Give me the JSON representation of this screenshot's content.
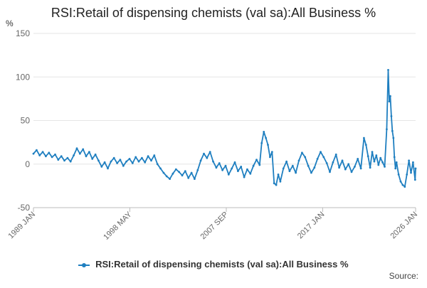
{
  "chart_data": {
    "type": "line",
    "title": "RSI:Retail of dispensing chemists (val sa):All Business %",
    "ylabel": "%",
    "xlabel": "",
    "ylim": [
      -50,
      150
    ],
    "yticks": [
      -50,
      0,
      50,
      100,
      150
    ],
    "x_ticks": [
      {
        "label": "1989 JAN",
        "t": 1989.0
      },
      {
        "label": "1998 MAY",
        "t": 1998.33
      },
      {
        "label": "2007 SEP",
        "t": 2007.67
      },
      {
        "label": "2017 JAN",
        "t": 2017.0
      },
      {
        "label": "2026 JAN",
        "t": 2026.0
      }
    ],
    "x_range": [
      1989.0,
      2026.0
    ],
    "grid": true,
    "legend_position": "bottom",
    "series": [
      {
        "name": "RSI:Retail of dispensing chemists (val sa):All Business %",
        "points": [
          [
            1989.0,
            12
          ],
          [
            1989.3,
            16
          ],
          [
            1989.6,
            10
          ],
          [
            1989.9,
            14
          ],
          [
            1990.2,
            9
          ],
          [
            1990.5,
            13
          ],
          [
            1990.8,
            8
          ],
          [
            1991.1,
            11
          ],
          [
            1991.4,
            5
          ],
          [
            1991.7,
            9
          ],
          [
            1992.0,
            4
          ],
          [
            1992.3,
            7
          ],
          [
            1992.6,
            3
          ],
          [
            1992.9,
            10
          ],
          [
            1993.2,
            18
          ],
          [
            1993.5,
            12
          ],
          [
            1993.8,
            17
          ],
          [
            1994.1,
            9
          ],
          [
            1994.4,
            14
          ],
          [
            1994.7,
            6
          ],
          [
            1995.0,
            11
          ],
          [
            1995.3,
            4
          ],
          [
            1995.6,
            -3
          ],
          [
            1995.9,
            2
          ],
          [
            1996.2,
            -5
          ],
          [
            1996.5,
            3
          ],
          [
            1996.8,
            7
          ],
          [
            1997.1,
            1
          ],
          [
            1997.4,
            5
          ],
          [
            1997.7,
            -2
          ],
          [
            1998.0,
            3
          ],
          [
            1998.3,
            6
          ],
          [
            1998.6,
            1
          ],
          [
            1998.9,
            8
          ],
          [
            1999.2,
            3
          ],
          [
            1999.5,
            7
          ],
          [
            1999.8,
            2
          ],
          [
            2000.1,
            9
          ],
          [
            2000.4,
            4
          ],
          [
            2000.7,
            10
          ],
          [
            2001.0,
            0
          ],
          [
            2001.3,
            -5
          ],
          [
            2001.6,
            -10
          ],
          [
            2001.9,
            -14
          ],
          [
            2002.2,
            -17
          ],
          [
            2002.5,
            -11
          ],
          [
            2002.8,
            -6
          ],
          [
            2003.1,
            -9
          ],
          [
            2003.4,
            -13
          ],
          [
            2003.7,
            -8
          ],
          [
            2004.0,
            -16
          ],
          [
            2004.3,
            -10
          ],
          [
            2004.6,
            -17
          ],
          [
            2004.9,
            -7
          ],
          [
            2005.2,
            4
          ],
          [
            2005.5,
            12
          ],
          [
            2005.8,
            7
          ],
          [
            2006.1,
            14
          ],
          [
            2006.4,
            3
          ],
          [
            2006.7,
            -4
          ],
          [
            2007.0,
            1
          ],
          [
            2007.3,
            -7
          ],
          [
            2007.6,
            -2
          ],
          [
            2007.9,
            -12
          ],
          [
            2008.2,
            -5
          ],
          [
            2008.5,
            2
          ],
          [
            2008.8,
            -8
          ],
          [
            2009.1,
            -3
          ],
          [
            2009.4,
            -15
          ],
          [
            2009.7,
            -6
          ],
          [
            2010.0,
            -11
          ],
          [
            2010.3,
            -2
          ],
          [
            2010.6,
            5
          ],
          [
            2010.9,
            -1
          ],
          [
            2011.1,
            24
          ],
          [
            2011.3,
            37
          ],
          [
            2011.5,
            30
          ],
          [
            2011.7,
            22
          ],
          [
            2011.9,
            8
          ],
          [
            2012.1,
            14
          ],
          [
            2012.3,
            -22
          ],
          [
            2012.5,
            -24
          ],
          [
            2012.7,
            -12
          ],
          [
            2012.9,
            -20
          ],
          [
            2013.2,
            -5
          ],
          [
            2013.5,
            3
          ],
          [
            2013.8,
            -8
          ],
          [
            2014.1,
            -2
          ],
          [
            2014.4,
            -10
          ],
          [
            2014.7,
            4
          ],
          [
            2015.0,
            13
          ],
          [
            2015.3,
            8
          ],
          [
            2015.6,
            -2
          ],
          [
            2015.9,
            -10
          ],
          [
            2016.2,
            -4
          ],
          [
            2016.5,
            6
          ],
          [
            2016.8,
            14
          ],
          [
            2017.1,
            8
          ],
          [
            2017.4,
            1
          ],
          [
            2017.7,
            -9
          ],
          [
            2018.0,
            2
          ],
          [
            2018.3,
            11
          ],
          [
            2018.6,
            -4
          ],
          [
            2018.9,
            4
          ],
          [
            2019.2,
            -6
          ],
          [
            2019.5,
            0
          ],
          [
            2019.8,
            -9
          ],
          [
            2020.1,
            -3
          ],
          [
            2020.4,
            6
          ],
          [
            2020.7,
            -5
          ],
          [
            2021.0,
            30
          ],
          [
            2021.2,
            22
          ],
          [
            2021.4,
            9
          ],
          [
            2021.6,
            -4
          ],
          [
            2021.8,
            14
          ],
          [
            2022.0,
            3
          ],
          [
            2022.2,
            10
          ],
          [
            2022.4,
            -1
          ],
          [
            2022.6,
            7
          ],
          [
            2022.8,
            2
          ],
          [
            2023.0,
            -3
          ],
          [
            2023.2,
            40
          ],
          [
            2023.35,
            108
          ],
          [
            2023.45,
            72
          ],
          [
            2023.55,
            78
          ],
          [
            2023.65,
            55
          ],
          [
            2023.75,
            38
          ],
          [
            2023.85,
            30
          ],
          [
            2023.95,
            8
          ],
          [
            2024.05,
            -5
          ],
          [
            2024.15,
            2
          ],
          [
            2024.35,
            -12
          ],
          [
            2024.55,
            -20
          ],
          [
            2024.75,
            -24
          ],
          [
            2024.95,
            -26
          ],
          [
            2025.15,
            -12
          ],
          [
            2025.35,
            4
          ],
          [
            2025.55,
            -10
          ],
          [
            2025.75,
            2
          ],
          [
            2025.95,
            -18
          ],
          [
            2026.0,
            -5
          ]
        ]
      }
    ]
  },
  "legend": {
    "label": "RSI:Retail of dispensing chemists (val sa):All Business %"
  },
  "source": {
    "label": "Source:"
  },
  "colors": {
    "series": "#1f7fc0",
    "grid": "#e6e6e6",
    "axis": "#bbbbbb",
    "text": "#333333"
  }
}
